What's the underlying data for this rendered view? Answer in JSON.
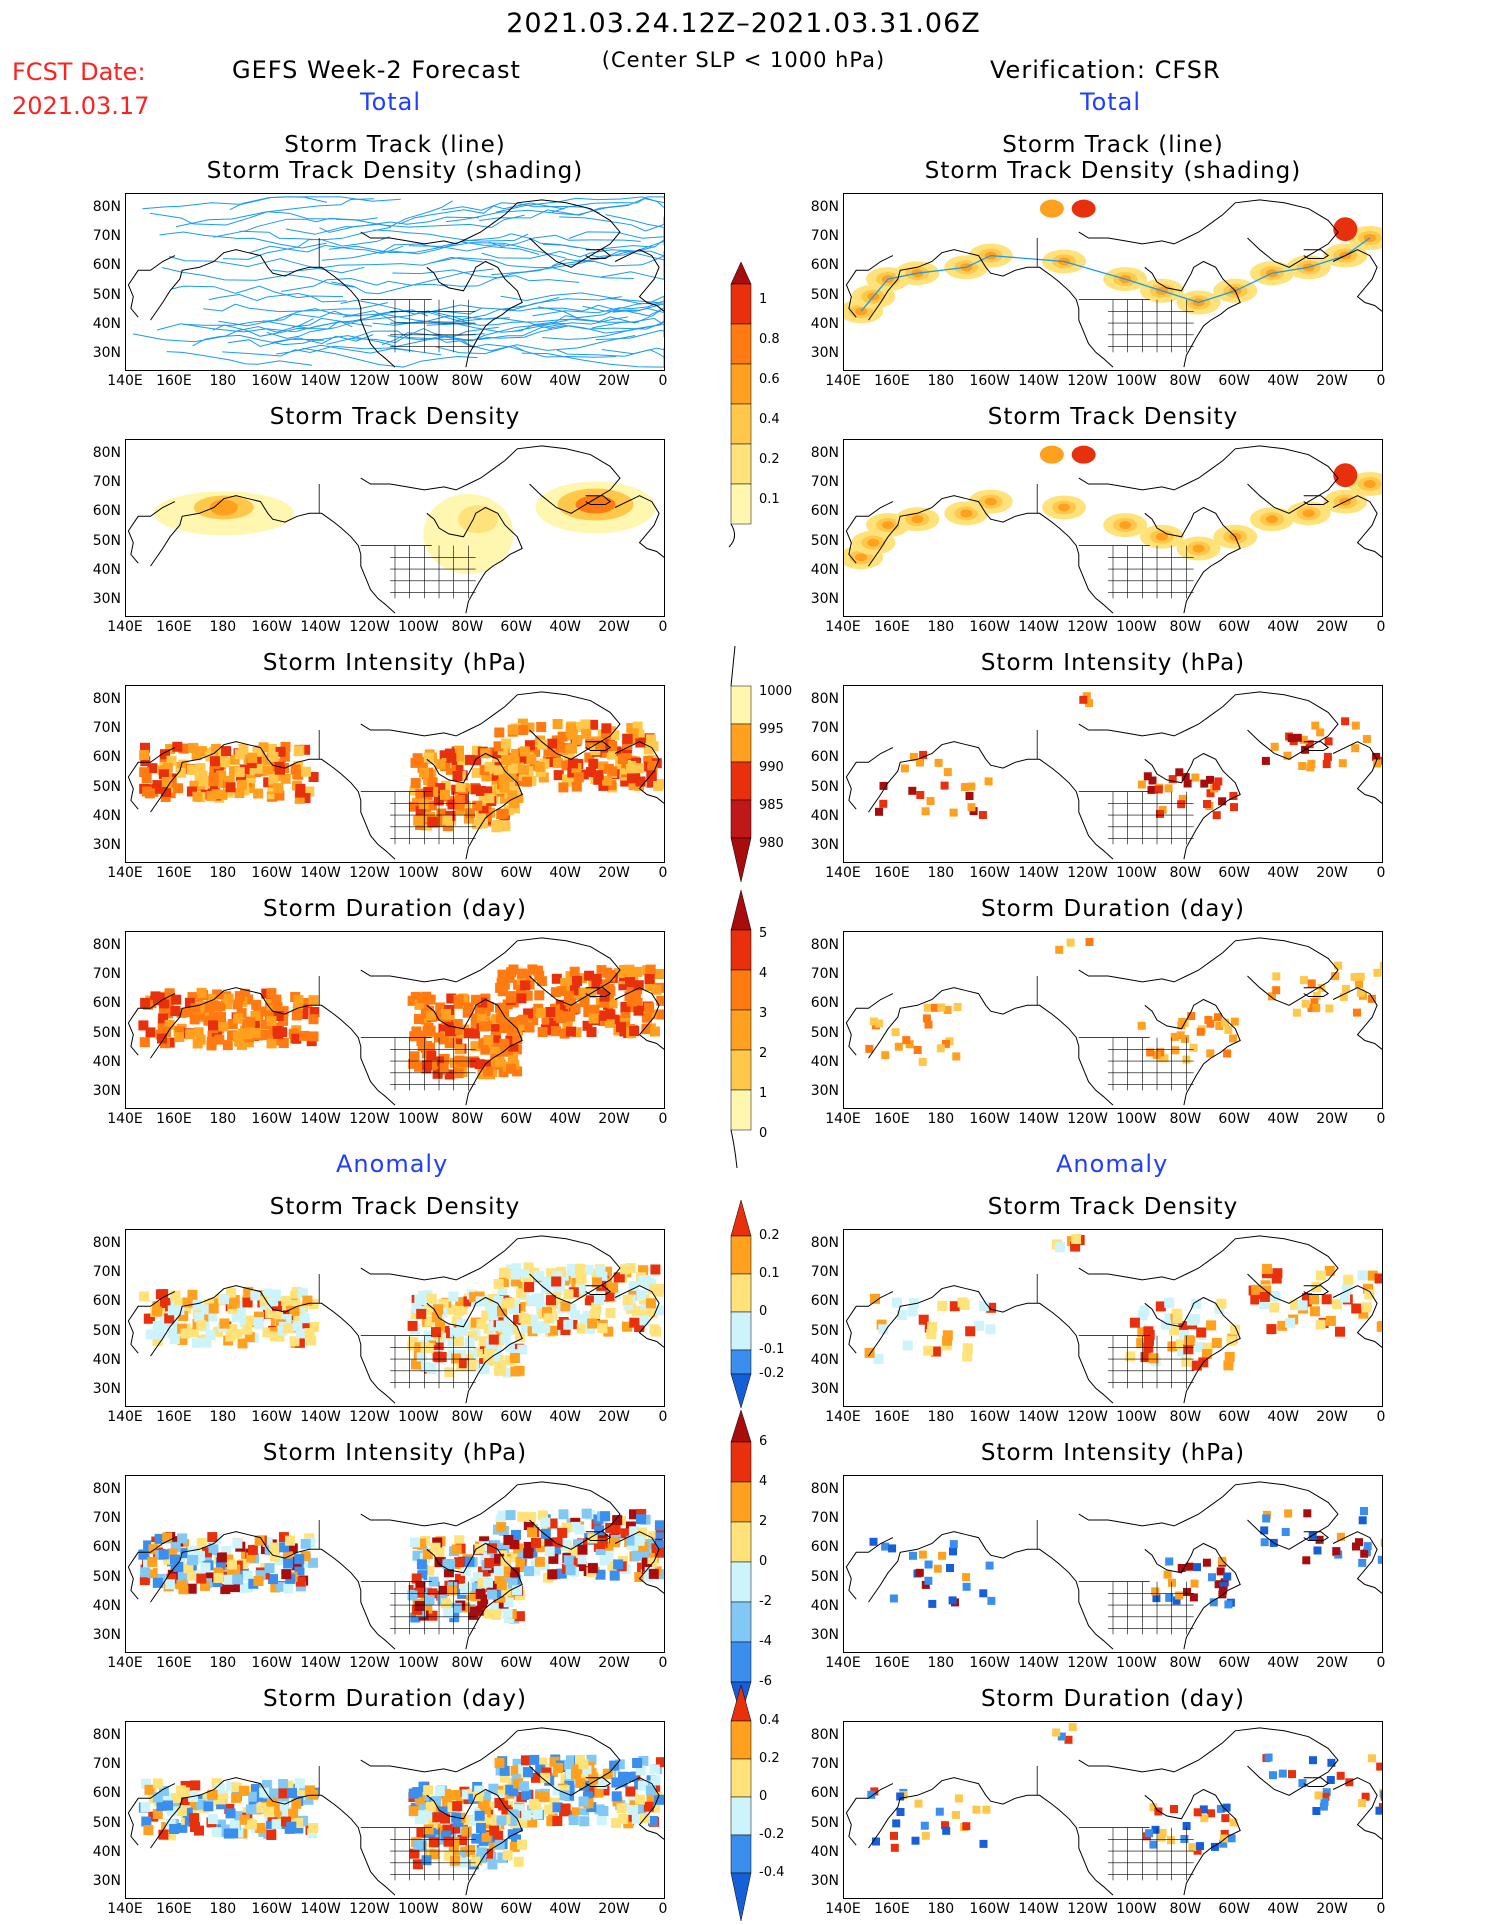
{
  "header": {
    "date_range": "2021.03.24.12Z–2021.03.31.06Z",
    "condition": "(Center SLP < 1000 hPa)",
    "fcst_label": "FCST Date:",
    "fcst_date": "2021.03.17",
    "model_title": "GEFS Week-2 Forecast",
    "verification_title": "Verification: CFSR"
  },
  "sections": {
    "total_left": "Total",
    "total_right": "Total",
    "anomaly_left": "Anomaly",
    "anomaly_right": "Anomaly"
  },
  "panel_titles": {
    "track_line": "Storm Track (line)",
    "track_density_shading": "Storm Track Density (shading)",
    "track_density": "Storm Track Density",
    "intensity": "Storm Intensity (hPa)",
    "duration": "Storm Duration (day)"
  },
  "axes": {
    "lat_labels": [
      "80N",
      "70N",
      "60N",
      "50N",
      "40N",
      "30N"
    ],
    "lon_labels": [
      "140E",
      "160E",
      "180",
      "160W",
      "140W",
      "120W",
      "100W",
      "80W",
      "60W",
      "40W",
      "20W",
      "0"
    ]
  },
  "colorbars": {
    "density_total": [
      "1",
      "0.8",
      "0.6",
      "0.4",
      "0.2",
      "0.1"
    ],
    "intensity_total": [
      "1000",
      "995",
      "990",
      "985",
      "980"
    ],
    "duration_total": [
      "5",
      "4",
      "3",
      "2",
      "1",
      "0"
    ],
    "density_anom": [
      "0.2",
      "0.1",
      "0",
      "-0.1",
      "-0.2"
    ],
    "intensity_anom": [
      "6",
      "4",
      "2",
      "0",
      "-2",
      "-4",
      "-6"
    ],
    "duration_anom": [
      "0.4",
      "0.2",
      "0",
      "-0.2",
      "-0.4"
    ]
  },
  "colors": {
    "fcst_red": "#ff2020",
    "section_blue": "#1f3fff",
    "track_line": "#1a9bf0",
    "yellow_light": "#fff7b0",
    "yellow": "#ffe27a",
    "orange_light": "#ffc84a",
    "orange": "#ffa01e",
    "orange_dark": "#ff7a10",
    "red": "#e8300c",
    "dark_red": "#a80c0c",
    "cyan_light": "#cdf3fb",
    "blue_light": "#82c8f5",
    "blue": "#3a8fee",
    "blue_dark": "#1560d8"
  }
}
